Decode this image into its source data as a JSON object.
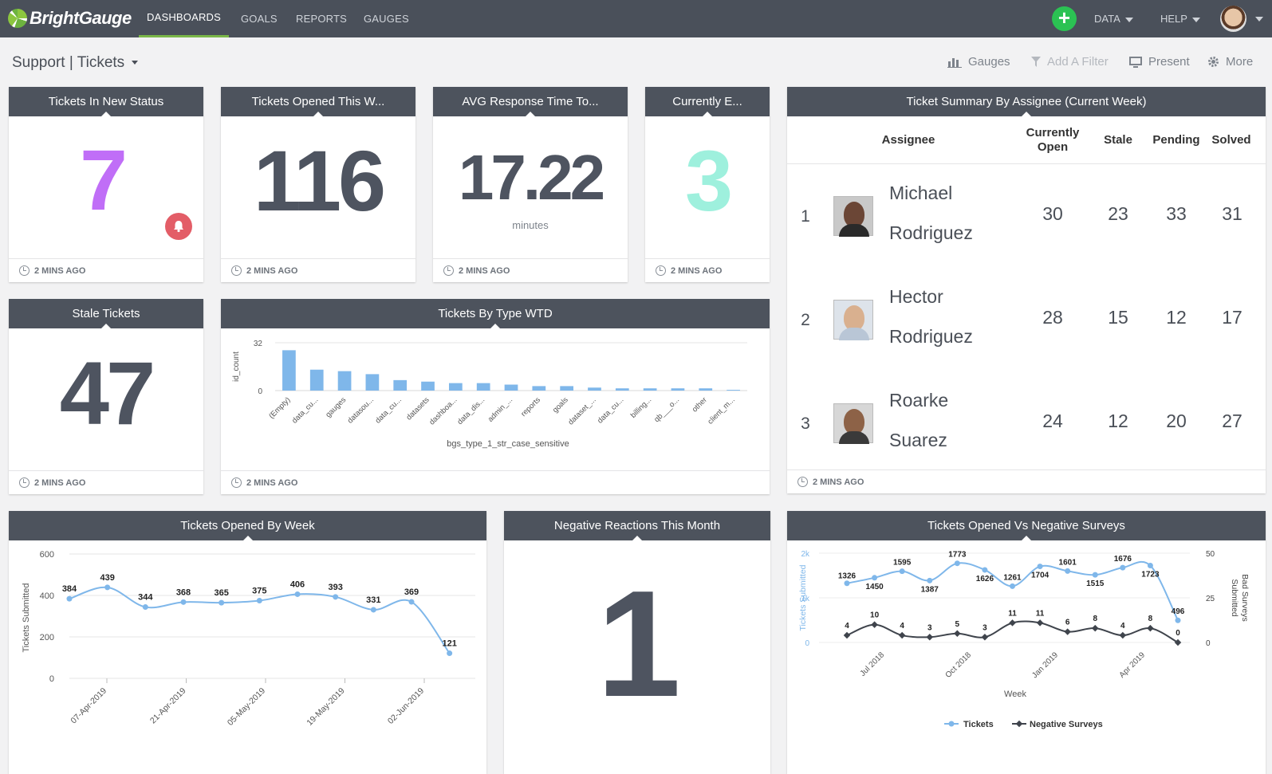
{
  "nav": {
    "brand": "BrightGauge",
    "links": [
      "DASHBOARDS",
      "GOALS",
      "REPORTS",
      "GAUGES"
    ],
    "add": "+",
    "data": "DATA",
    "help": "HELP"
  },
  "toolbar": {
    "title": "Support | Tickets",
    "gauges": "Gauges",
    "filter": "Add A Filter",
    "present": "Present",
    "more": "More"
  },
  "ago": "2 MINS AGO",
  "colors": {
    "purple": "#c06ef7",
    "teal": "#9ef0dd",
    "slate": "#4e5460",
    "blue": "#7fb7ea",
    "accent_green": "#7ab648"
  },
  "kpi": {
    "new_status": {
      "title": "Tickets In New Status",
      "value": "7"
    },
    "opened_week": {
      "title": "Tickets Opened This W...",
      "value": "116"
    },
    "avg_response": {
      "title": "AVG Response Time To...",
      "value": "17.22",
      "unit": "minutes"
    },
    "currently": {
      "title": "Currently E...",
      "value": "3"
    },
    "stale": {
      "title": "Stale Tickets",
      "value": "47"
    },
    "negative": {
      "title": "Negative Reactions This Month",
      "value": "1"
    }
  },
  "summary": {
    "title": "Ticket Summary By Assignee (Current Week)",
    "headers": {
      "assignee": "Assignee",
      "open_1": "Currently",
      "open_2": "Open",
      "stale": "Stale",
      "pending": "Pending",
      "solved": "Solved"
    },
    "rows": [
      {
        "rank": "1",
        "first": "Michael",
        "last": "Rodriguez",
        "open": "30",
        "stale": "23",
        "pending": "33",
        "solved": "31"
      },
      {
        "rank": "2",
        "first": "Hector",
        "last": "Rodriguez",
        "open": "28",
        "stale": "15",
        "pending": "12",
        "solved": "17"
      },
      {
        "rank": "3",
        "first": "Roarke",
        "last": "Suarez",
        "open": "24",
        "stale": "12",
        "pending": "20",
        "solved": "27"
      }
    ]
  },
  "chart_data": [
    {
      "type": "bar",
      "title": "Tickets By Type WTD",
      "xlabel": "bgs_type_1_str_case_sensitive",
      "ylabel": "id_count",
      "ylim": [
        0,
        32
      ],
      "yticks": [
        "0",
        "32"
      ],
      "categories": [
        "(Empty)",
        "data_cu...",
        "gauges",
        "datasou...",
        "data_cu...",
        "datasets",
        "dashboa...",
        "data_dis...",
        "admin_...",
        "reports",
        "goals",
        "dataset_...",
        "data_cu...",
        "billing...",
        "qb___o...",
        "other",
        "client_m..."
      ],
      "values": [
        27,
        14,
        13,
        11,
        7,
        6,
        5,
        5,
        4,
        3,
        3,
        2,
        1.5,
        1.5,
        1.5,
        1.5,
        0.5
      ]
    },
    {
      "type": "line",
      "title": "Tickets Opened By Week",
      "ylabel": "Tickets Submitted",
      "ylim": [
        0,
        600
      ],
      "yticks": [
        "0",
        "200",
        "400",
        "600"
      ],
      "xticks": [
        "07-Apr-2019",
        "21-Apr-2019",
        "05-May-2019",
        "19-May-2019",
        "02-Jun-2019"
      ],
      "values": [
        384,
        439,
        344,
        368,
        365,
        375,
        406,
        393,
        331,
        369,
        121
      ]
    },
    {
      "type": "line",
      "title": "Tickets Opened Vs Negative Surveys",
      "xlabel": "Week",
      "ylabel_left": "Tickets Submitted",
      "ylabel_right": "Bad Surveys Submitted",
      "yticks_left": [
        "0",
        "1k",
        "2k"
      ],
      "yticks_right": [
        "0",
        "25",
        "50"
      ],
      "xticks": [
        "Jul 2018",
        "Oct 2018",
        "Jan 2019",
        "Apr 2019"
      ],
      "series": [
        {
          "name": "Tickets",
          "values": [
            1326,
            1450,
            1595,
            1387,
            1773,
            1626,
            1261,
            1704,
            1601,
            1515,
            1676,
            1723,
            496
          ]
        },
        {
          "name": "Negative Surveys",
          "values": [
            4,
            10,
            4,
            3,
            5,
            3,
            11,
            11,
            6,
            8,
            4,
            8,
            0
          ]
        }
      ]
    }
  ]
}
